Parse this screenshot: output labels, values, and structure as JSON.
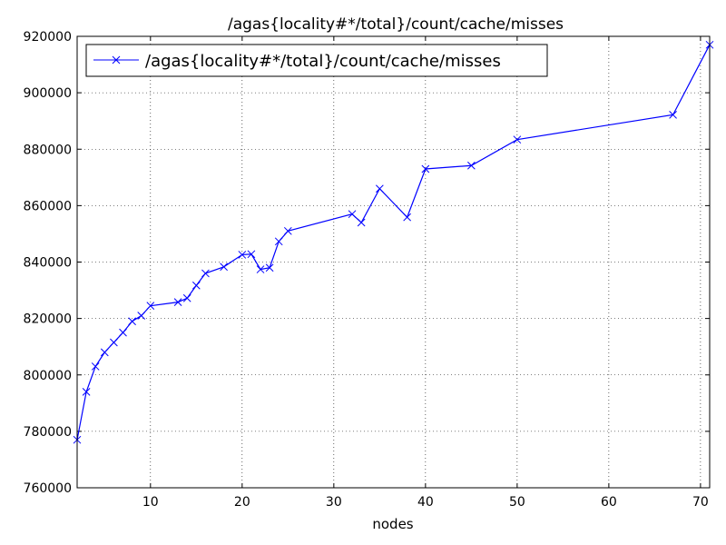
{
  "chart_data": {
    "type": "line",
    "title": "/agas{locality#*/total}/count/cache/misses",
    "xlabel": "nodes",
    "ylabel": "",
    "xlim": [
      2,
      71
    ],
    "ylim": [
      760000,
      920000
    ],
    "xticks": [
      10,
      20,
      30,
      40,
      50,
      60,
      70
    ],
    "xtick_labels": [
      "10",
      "20",
      "30",
      "40",
      "50",
      "60",
      "70"
    ],
    "yticks": [
      760000,
      780000,
      800000,
      820000,
      840000,
      860000,
      880000,
      900000,
      920000
    ],
    "ytick_labels": [
      "760000",
      "780000",
      "800000",
      "820000",
      "840000",
      "860000",
      "880000",
      "900000",
      "920000"
    ],
    "grid": true,
    "legend_position": "top-left",
    "series": [
      {
        "name": "/agas{locality#*/total}/count/cache/misses",
        "color": "#0000ff",
        "marker": "x",
        "x": [
          2,
          3,
          4,
          5,
          6,
          7,
          8,
          9,
          10,
          13,
          14,
          15,
          16,
          18,
          20,
          21,
          22,
          23,
          24,
          25,
          32,
          33,
          35,
          38,
          40,
          45,
          50,
          67,
          71
        ],
        "y": [
          777000,
          794000,
          803000,
          808000,
          811500,
          815000,
          819000,
          821000,
          824500,
          825800,
          827200,
          831700,
          836000,
          838300,
          842600,
          842800,
          837400,
          838000,
          847300,
          851000,
          857000,
          854000,
          866000,
          855900,
          873000,
          874200,
          883400,
          892200,
          917000
        ]
      }
    ]
  }
}
